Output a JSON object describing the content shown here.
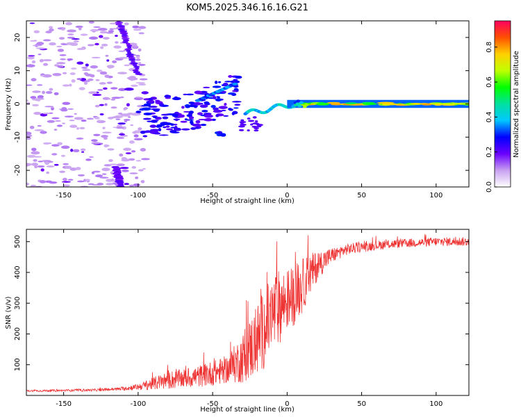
{
  "title": "KOM5.2025.346.16.16.G21",
  "colorbar": {
    "label": "Normalized spectral amplitude",
    "ticks": [
      0.0,
      0.2,
      0.4,
      0.6,
      0.8
    ],
    "tick_labels": [
      "0.0",
      "0.2",
      "0.4",
      "0.6",
      "0.8"
    ],
    "range": [
      0,
      0.95
    ]
  },
  "chart_data": [
    {
      "type": "heatmap",
      "name": "spectrogram",
      "xlabel": "Height of straight line (km)",
      "ylabel": "Frequency (Hz)",
      "xlim": [
        -175,
        122
      ],
      "ylim": [
        -25,
        25
      ],
      "xticks": [
        -150,
        -100,
        -50,
        0,
        50,
        100
      ],
      "xtick_labels": [
        "-150",
        "-100",
        "-50",
        "0",
        "50",
        "100"
      ],
      "yticks": [
        -20,
        -10,
        0,
        10,
        20
      ],
      "ytick_labels": [
        "-20",
        "-10",
        "0",
        "10",
        "20"
      ],
      "features": [
        {
          "name": "scattered-noise",
          "x_range": [
            -175,
            -95
          ],
          "y_range": [
            -25,
            25
          ],
          "amplitude": 0.08
        },
        {
          "name": "diagonal-streak",
          "from": [
            -113,
            25
          ],
          "to": [
            -100,
            9
          ],
          "amplitude": 0.18
        },
        {
          "name": "lower-diagonal-streak",
          "from": [
            -115,
            -19
          ],
          "to": [
            -112,
            -25
          ],
          "amplitude": 0.18
        },
        {
          "name": "arc-cluster",
          "from": [
            -100,
            -7
          ],
          "to": [
            -32,
            5
          ],
          "amplitude": 0.2
        },
        {
          "name": "blob",
          "center": [
            -44,
            -9
          ],
          "amplitude": 0.25
        },
        {
          "name": "transition-ridge",
          "from": [
            -28,
            -3
          ],
          "to": [
            5,
            0
          ],
          "amplitude": 0.35
        },
        {
          "name": "tonal-line",
          "x_range": [
            0,
            122
          ],
          "frequency": 0,
          "amplitude": 0.85
        }
      ]
    },
    {
      "type": "line",
      "name": "snr",
      "xlabel": "Height of straight line (km)",
      "ylabel": "SNR (v/v)",
      "xlim": [
        -175,
        122
      ],
      "ylim": [
        0,
        540
      ],
      "xticks": [
        -150,
        -100,
        -50,
        0,
        50,
        100
      ],
      "xtick_labels": [
        "-150",
        "-100",
        "-50",
        "0",
        "50",
        "100"
      ],
      "yticks": [
        100,
        200,
        300,
        400,
        500
      ],
      "ytick_labels": [
        "100",
        "200",
        "300",
        "400",
        "500"
      ],
      "series": [
        {
          "name": "SNR",
          "color": "#ee3333",
          "x": [
            -175,
            -150,
            -125,
            -110,
            -100,
            -90,
            -80,
            -70,
            -60,
            -50,
            -40,
            -30,
            -25,
            -20,
            -15,
            -10,
            -5,
            0,
            5,
            10,
            15,
            20,
            25,
            30,
            35,
            40,
            50,
            60,
            70,
            80,
            90,
            100,
            110,
            122
          ],
          "y": [
            15,
            16,
            18,
            22,
            28,
            38,
            50,
            55,
            62,
            72,
            85,
            120,
            150,
            180,
            220,
            260,
            290,
            310,
            330,
            355,
            390,
            420,
            440,
            455,
            465,
            475,
            482,
            488,
            492,
            495,
            497,
            500,
            500,
            500
          ],
          "noise": [
            3,
            4,
            4,
            6,
            10,
            20,
            30,
            30,
            35,
            40,
            45,
            80,
            100,
            120,
            130,
            130,
            120,
            100,
            100,
            90,
            70,
            50,
            35,
            25,
            20,
            18,
            16,
            15,
            14,
            14,
            14,
            14,
            14,
            14
          ]
        }
      ]
    }
  ]
}
